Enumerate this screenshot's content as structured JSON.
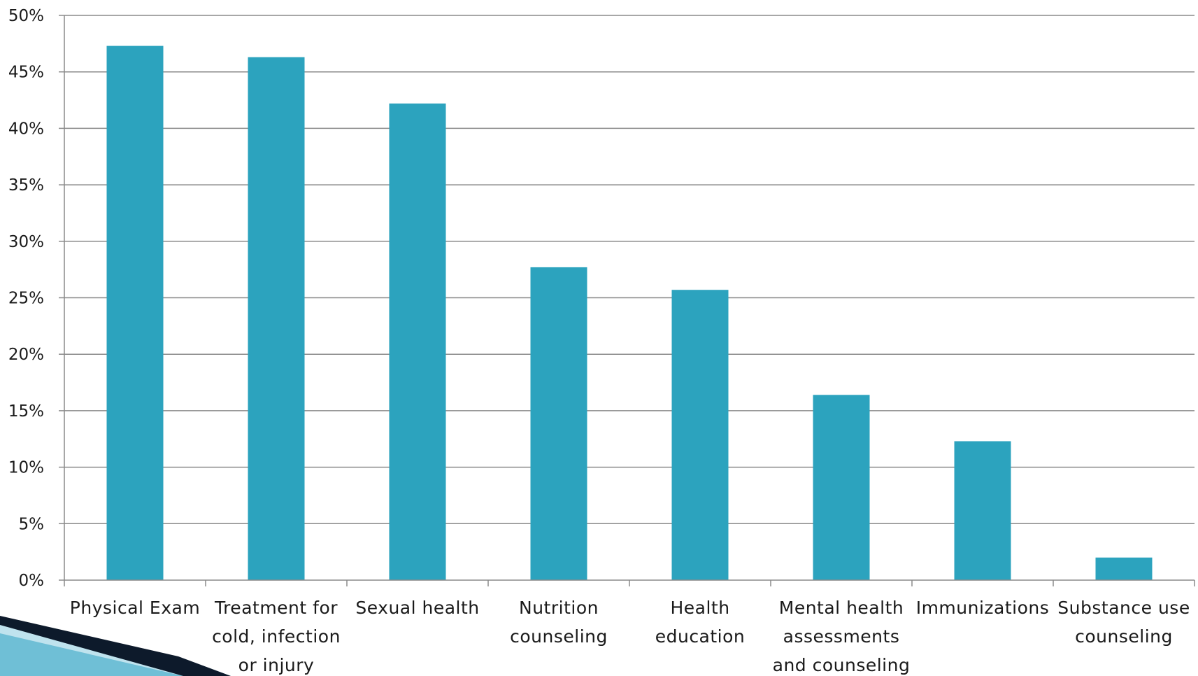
{
  "chart_data": {
    "type": "bar",
    "title": "",
    "xlabel": "",
    "ylabel": "",
    "categories": [
      [
        "Physical Exam"
      ],
      [
        "Treatment for",
        "cold, infection",
        "or injury"
      ],
      [
        "Sexual health"
      ],
      [
        "Nutrition",
        "counseling"
      ],
      [
        "Health",
        "education"
      ],
      [
        "Mental health",
        "assessments",
        "and counseling"
      ],
      [
        "Immunizations"
      ],
      [
        "Substance use",
        "counseling"
      ]
    ],
    "values": [
      47.3,
      46.3,
      42.2,
      27.7,
      25.7,
      16.4,
      12.3,
      2.0
    ],
    "ylim": [
      0,
      50
    ],
    "yticks": [
      "0%",
      "5%",
      "10%",
      "15%",
      "20%",
      "25%",
      "30%",
      "35%",
      "40%",
      "45%",
      "50%"
    ],
    "grid": true,
    "legend": "none",
    "bar_color": "#2ca3be"
  },
  "decor": {
    "corner_color": "#0d1a2b",
    "corner_accent": "#3fa9c8"
  }
}
